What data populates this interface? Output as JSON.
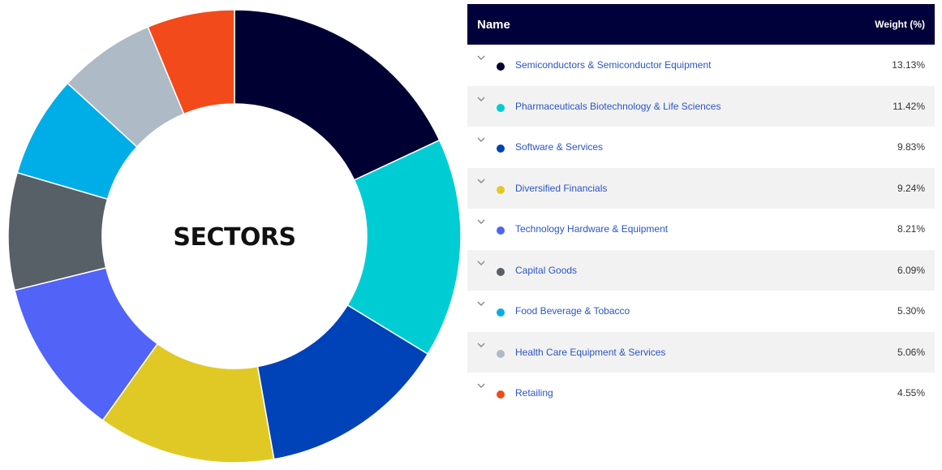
{
  "chart_data": {
    "type": "pie",
    "center_label": "SECTORS",
    "slices_note_visible_other": true,
    "series": [
      {
        "name": "Semiconductors & Semiconductor Equipment",
        "value": 13.13,
        "display": "13.13%",
        "color": "#000033"
      },
      {
        "name": "Pharmaceuticals Biotechnology & Life Sciences",
        "value": 11.42,
        "display": "11.42%",
        "color": "#00cdd3"
      },
      {
        "name": "Software & Services",
        "value": 9.83,
        "display": "9.83%",
        "color": "#0042b8"
      },
      {
        "name": "Diversified Financials",
        "value": 9.24,
        "display": "9.24%",
        "color": "#e0c925"
      },
      {
        "name": "Technology Hardware & Equipment",
        "value": 8.21,
        "display": "8.21%",
        "color": "#5263f7"
      },
      {
        "name": "Capital Goods",
        "value": 6.09,
        "display": "6.09%",
        "color": "#575f67"
      },
      {
        "name": "Food Beverage & Tobacco",
        "value": 5.3,
        "display": "5.30%",
        "color": "#00aee7"
      },
      {
        "name": "Health Care Equipment & Services",
        "value": 5.06,
        "display": "5.06%",
        "color": "#aebac6"
      },
      {
        "name": "Retailing",
        "value": 4.55,
        "display": "4.55%",
        "color": "#f24a1a"
      }
    ]
  },
  "table": {
    "header_name": "Name",
    "header_weight": "Weight (%)"
  }
}
